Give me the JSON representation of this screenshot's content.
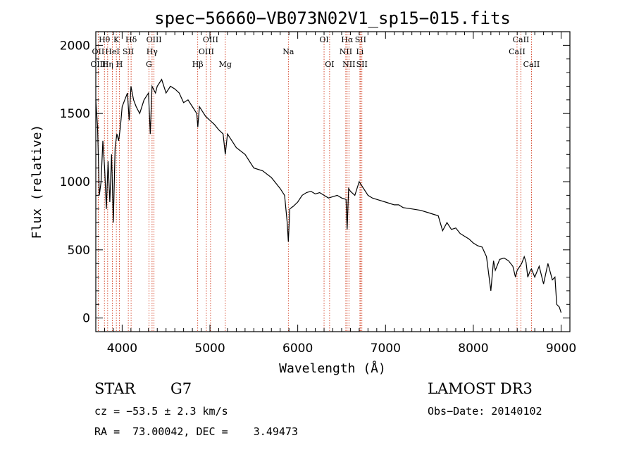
{
  "chart_data": {
    "type": "line",
    "title": "spec−56660−VB073N02V1_sp15−015.fits",
    "xlabel": "Wavelength (Å)",
    "ylabel": "Flux (relative)",
    "xlim": [
      3700,
      9100
    ],
    "ylim": [
      -100,
      2100
    ],
    "x_ticks": [
      4000,
      5000,
      6000,
      7000,
      8000,
      9000
    ],
    "y_ticks": [
      0,
      500,
      1000,
      1500,
      2000
    ],
    "grid": false,
    "series": [
      {
        "color": "#000000",
        "x": [
          3700,
          3720,
          3740,
          3760,
          3780,
          3800,
          3820,
          3840,
          3860,
          3880,
          3900,
          3920,
          3940,
          3960,
          3980,
          4000,
          4030,
          4060,
          4080,
          4100,
          4130,
          4160,
          4200,
          4250,
          4300,
          4320,
          4340,
          4380,
          4400,
          4450,
          4500,
          4550,
          4600,
          4650,
          4700,
          4750,
          4800,
          4850,
          4862,
          4880,
          4900,
          4950,
          5000,
          5050,
          5100,
          5150,
          5175,
          5200,
          5250,
          5300,
          5400,
          5500,
          5600,
          5700,
          5800,
          5850,
          5880,
          5893,
          5910,
          5950,
          6000,
          6050,
          6100,
          6150,
          6200,
          6250,
          6300,
          6350,
          6400,
          6450,
          6500,
          6550,
          6563,
          6580,
          6600,
          6650,
          6700,
          6750,
          6800,
          6850,
          6900,
          6950,
          7000,
          7050,
          7100,
          7150,
          7200,
          7300,
          7400,
          7500,
          7550,
          7600,
          7650,
          7700,
          7750,
          7800,
          7850,
          7900,
          7950,
          8000,
          8050,
          8100,
          8150,
          8180,
          8200,
          8230,
          8250,
          8300,
          8350,
          8400,
          8450,
          8480,
          8500,
          8530,
          8550,
          8580,
          8600,
          8620,
          8650,
          8662,
          8700,
          8750,
          8800,
          8850,
          8900,
          8930,
          8950,
          8980,
          9000
        ],
        "y": [
          1600,
          1400,
          900,
          1000,
          1300,
          1100,
          800,
          1150,
          850,
          1200,
          700,
          1250,
          1350,
          1300,
          1400,
          1550,
          1600,
          1650,
          1450,
          1700,
          1600,
          1550,
          1500,
          1600,
          1650,
          1350,
          1700,
          1650,
          1700,
          1750,
          1650,
          1700,
          1680,
          1650,
          1580,
          1600,
          1550,
          1500,
          1400,
          1550,
          1530,
          1480,
          1450,
          1420,
          1380,
          1350,
          1200,
          1350,
          1300,
          1250,
          1200,
          1100,
          1080,
          1030,
          950,
          900,
          700,
          560,
          800,
          820,
          850,
          900,
          920,
          930,
          910,
          920,
          900,
          880,
          890,
          900,
          880,
          870,
          650,
          950,
          930,
          900,
          1000,
          950,
          900,
          880,
          870,
          860,
          850,
          840,
          830,
          830,
          810,
          800,
          790,
          770,
          760,
          750,
          640,
          700,
          650,
          660,
          620,
          600,
          580,
          550,
          530,
          520,
          450,
          300,
          200,
          420,
          350,
          430,
          440,
          420,
          380,
          300,
          350,
          380,
          400,
          450,
          410,
          300,
          350,
          360,
          300,
          380,
          250,
          400,
          280,
          300,
          100,
          80,
          40
        ]
      }
    ],
    "line_markers": [
      {
        "label": "Hθ",
        "x": 3798,
        "row": 0
      },
      {
        "label": "OII",
        "x": 3727,
        "row": 1
      },
      {
        "label": "OIII",
        "x": 3727,
        "row": 2
      },
      {
        "label": "K",
        "x": 3934,
        "row": 0
      },
      {
        "label": "HeI",
        "x": 3889,
        "row": 1
      },
      {
        "label": "Hη",
        "x": 3835,
        "row": 2
      },
      {
        "label": "Hδ",
        "x": 4102,
        "row": 0
      },
      {
        "label": "SII",
        "x": 4070,
        "row": 1
      },
      {
        "label": "H",
        "x": 3969,
        "row": 2
      },
      {
        "label": "OIII",
        "x": 4363,
        "row": 0
      },
      {
        "label": "Hγ",
        "x": 4341,
        "row": 1
      },
      {
        "label": "G",
        "x": 4305,
        "row": 2
      },
      {
        "label": "OIII",
        "x": 5007,
        "row": 0
      },
      {
        "label": "OIII",
        "x": 4959,
        "row": 1
      },
      {
        "label": "Hβ",
        "x": 4861,
        "row": 2
      },
      {
        "label": "Mg",
        "x": 5175,
        "row": 2
      },
      {
        "label": "Na",
        "x": 5893,
        "row": 1
      },
      {
        "label": "OI",
        "x": 6300,
        "row": 0
      },
      {
        "label": "OI",
        "x": 6363,
        "row": 2
      },
      {
        "label": "Hα",
        "x": 6563,
        "row": 0
      },
      {
        "label": "SII",
        "x": 6716,
        "row": 0
      },
      {
        "label": "NII",
        "x": 6548,
        "row": 1
      },
      {
        "label": "Li",
        "x": 6708,
        "row": 1
      },
      {
        "label": "NII",
        "x": 6583,
        "row": 2
      },
      {
        "label": "SII",
        "x": 6731,
        "row": 2
      },
      {
        "label": "CaII",
        "x": 8542,
        "row": 0
      },
      {
        "label": "CaII",
        "x": 8498,
        "row": 1
      },
      {
        "label": "CaII",
        "x": 8662,
        "row": 2
      }
    ]
  },
  "info": {
    "class_label": "STAR",
    "subclass": "G7",
    "survey": "LAMOST DR3",
    "cz": "cz = −53.5 ± 2.3 km/s",
    "obs_date": "Obs−Date: 20140102",
    "coords": "RA =  73.00042, DEC =    3.49473"
  },
  "colors": {
    "spectrum": "#000000",
    "line_markers": "#cc2200",
    "background": "#ffffff"
  }
}
